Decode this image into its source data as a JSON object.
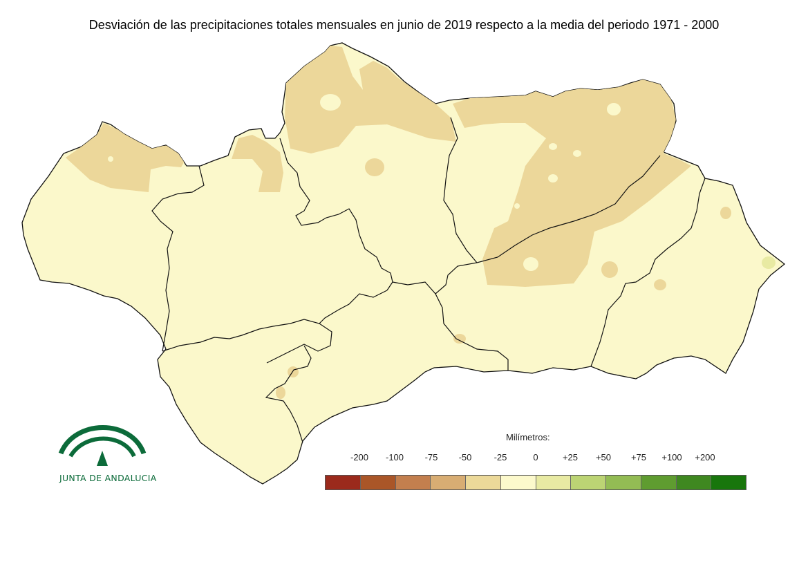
{
  "title": "Desviación de las precipitaciones totales mensuales en junio de 2019 respecto a la media del periodo 1971 - 2000",
  "legend": {
    "unit_label": "Milímetros:",
    "ticks": [
      "-200",
      "-100",
      "-75",
      "-50",
      "-25",
      "0",
      "+25",
      "+50",
      "+75",
      "+100",
      "+200"
    ],
    "colors": [
      "#9b2a1c",
      "#aa5628",
      "#c37f4e",
      "#d8ad73",
      "#ecd999",
      "#fcf9cc",
      "#e8eaa3",
      "#bcd474",
      "#93bc54",
      "#5f9c30",
      "#3f8820",
      "#18760c"
    ]
  },
  "logo": {
    "text": "JUNTA DE ANDALUCIA",
    "icon": "junta-de-andalucia-logo",
    "color": "#0c6b3a"
  },
  "map": {
    "region_fill": "#fbf8cb",
    "deficit_fill": "#ecd79a",
    "slight_surplus_fill": "#e8eaa3",
    "border_color": "#1a1a1a"
  }
}
